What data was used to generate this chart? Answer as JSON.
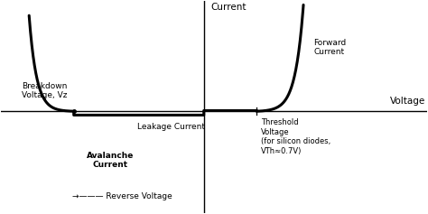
{
  "background_color": "#ffffff",
  "axis_color": "#000000",
  "curve_color": "#000000",
  "curve_linewidth": 2.2,
  "axis_linewidth": 1.0,
  "fig_width": 4.74,
  "fig_height": 2.37,
  "dpi": 100,
  "xlim": [
    -5.0,
    5.5
  ],
  "ylim": [
    -4.8,
    5.2
  ],
  "threshold_voltage_x": 1.3,
  "breakdown_voltage_x": -3.2,
  "labels": {
    "current_axis": "Current",
    "voltage_axis": "Voltage",
    "forward_current": "Forward\nCurrent",
    "leakage_current": "Leakage Current",
    "avalanche_current": "Avalanche\nCurrent",
    "breakdown_voltage": "Breakdown\nVoltage, Vz",
    "threshold_voltage": "Threshold\nVoltage\n(for silicon diodes,\nVTh≈0.7V)",
    "reverse_voltage_label": "→——— Reverse Voltage"
  },
  "fontsizes": {
    "axis_title": 7.5,
    "annotation": 6.5,
    "threshold": 6.0
  }
}
